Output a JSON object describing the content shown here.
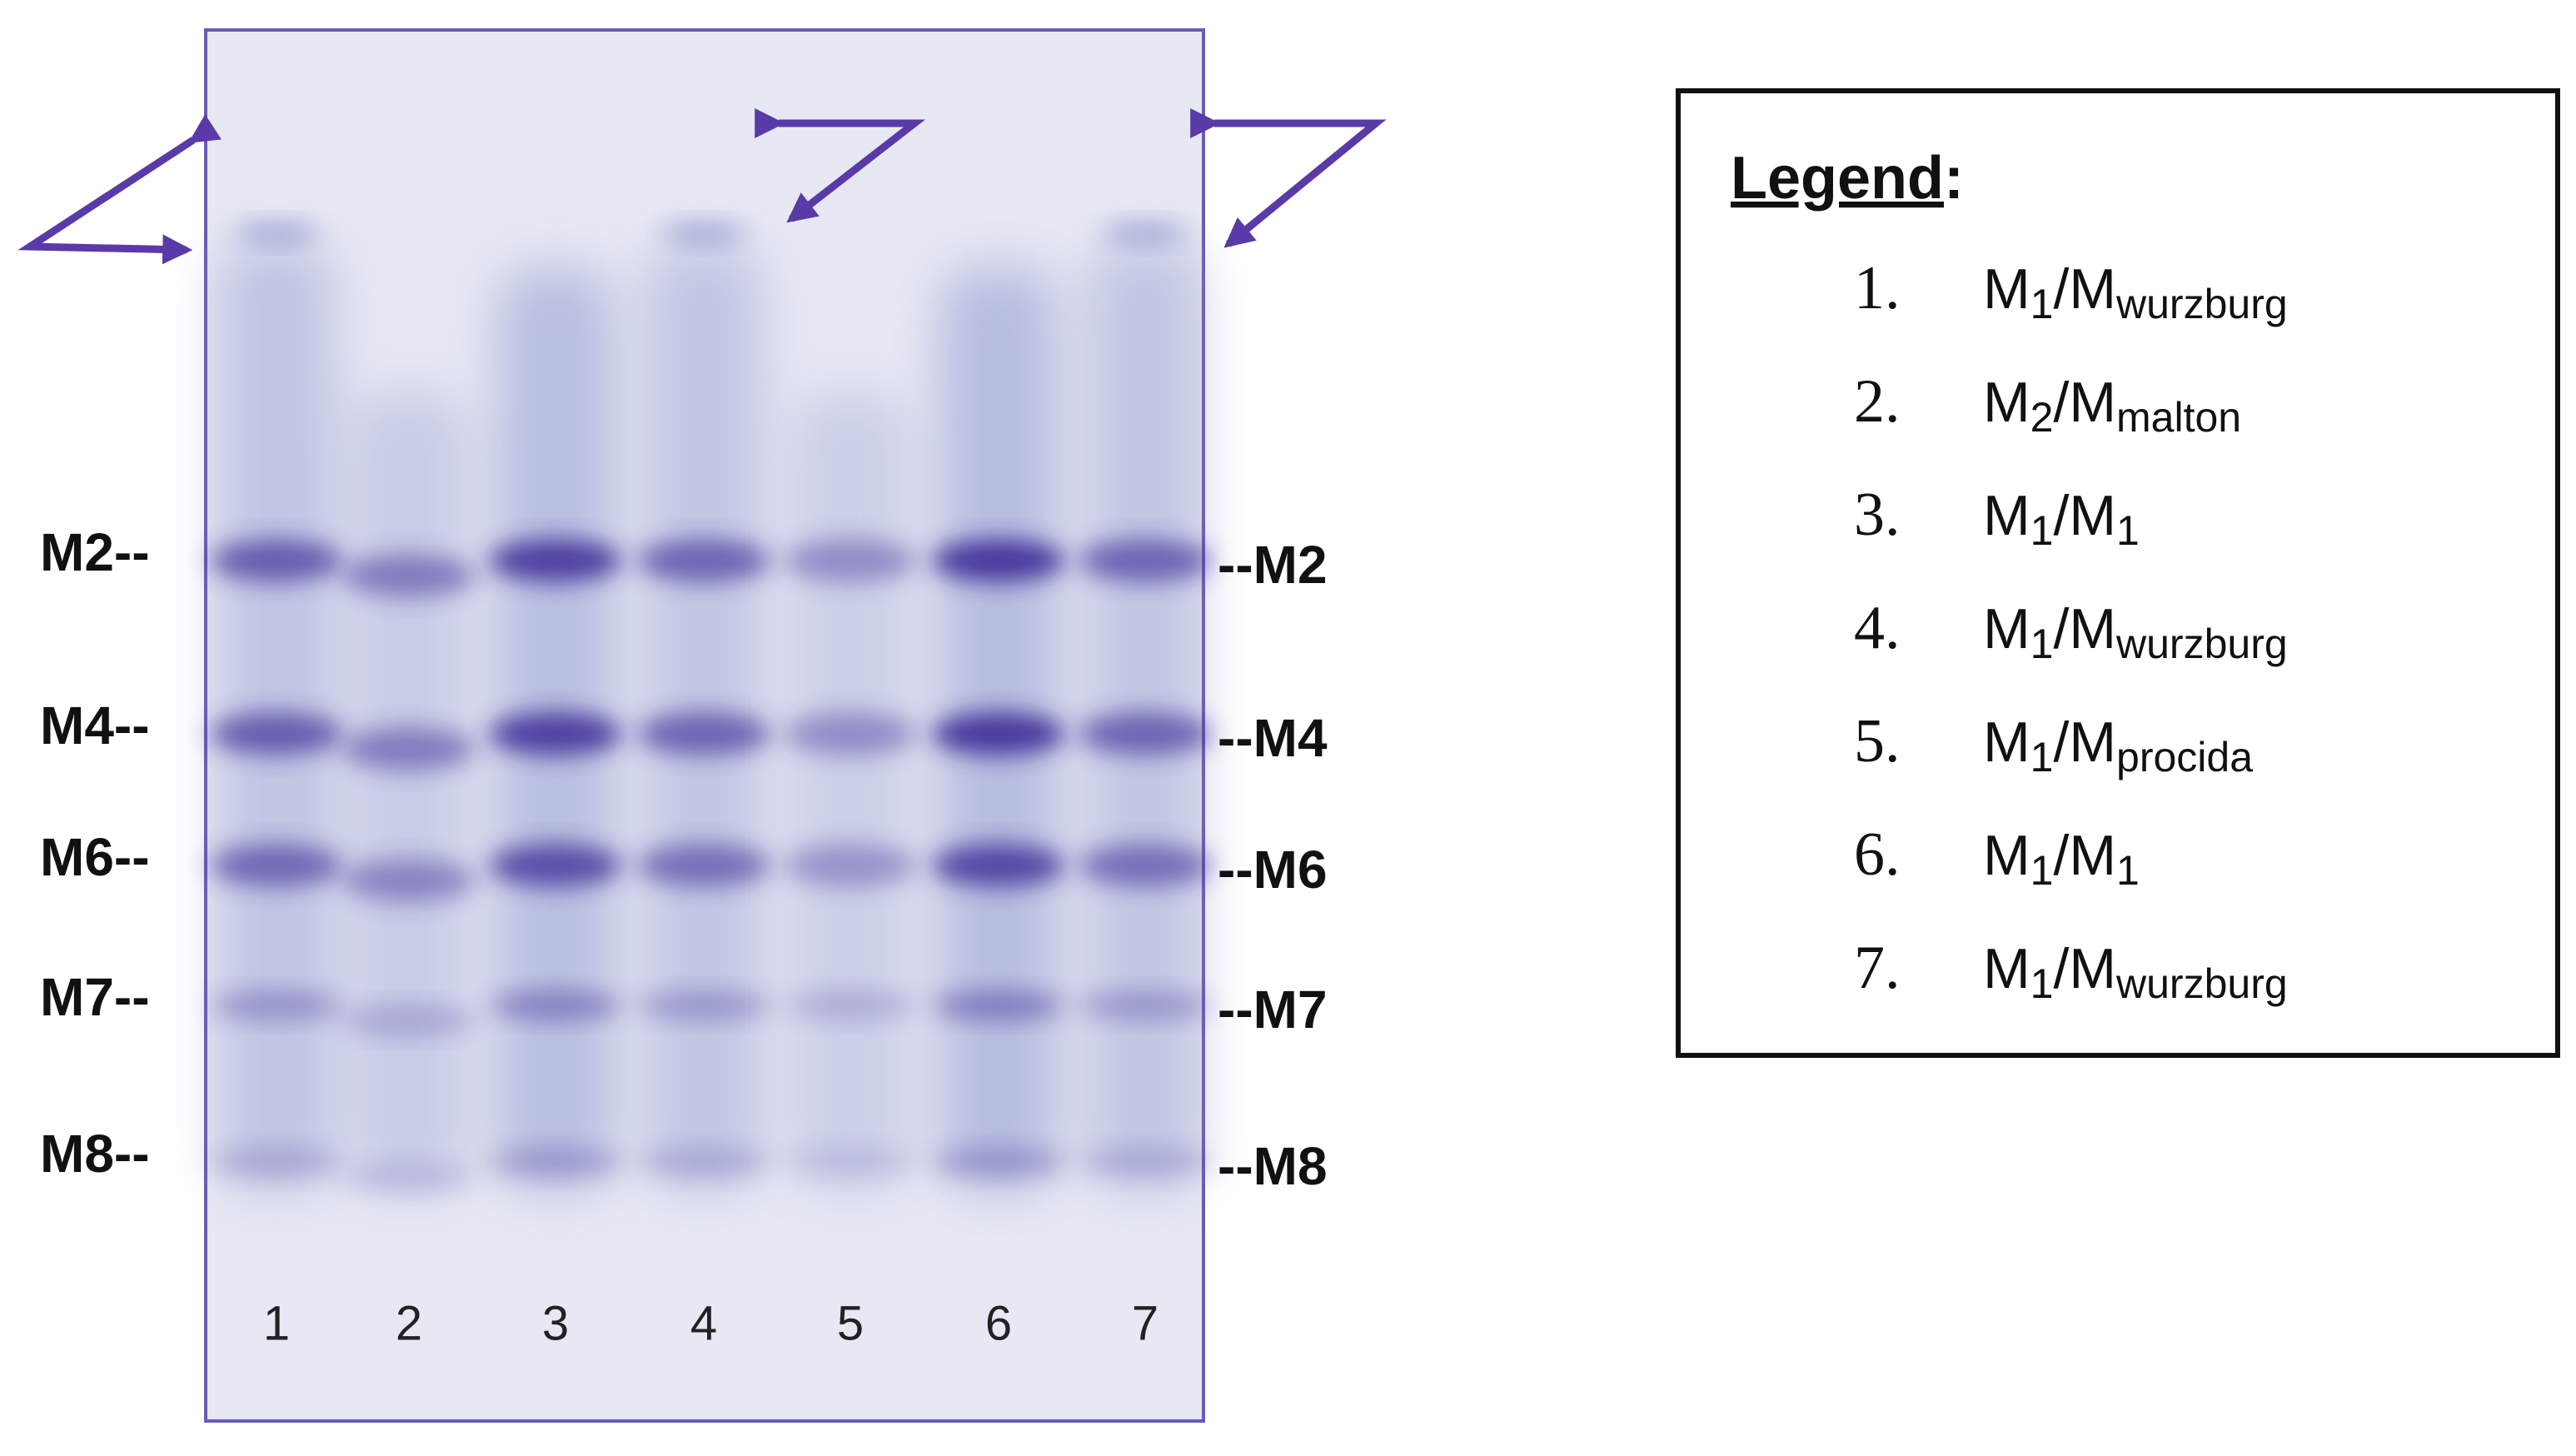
{
  "gel": {
    "markers_left": [
      "M2--",
      "M4--",
      "M6--",
      "M7--",
      "M8--"
    ],
    "markers_right": [
      "--M2",
      "--M4",
      "--M6",
      "--M7",
      "--M8"
    ],
    "lanes": [
      "1",
      "2",
      "3",
      "4",
      "5",
      "6",
      "7"
    ]
  },
  "legend": {
    "title": "Legend",
    "title_punct": ":",
    "items": [
      {
        "number": "1.",
        "parts": [
          {
            "text": "M"
          },
          {
            "sub": "1"
          },
          {
            "text": "/M"
          },
          {
            "sub": "wurzburg"
          }
        ]
      },
      {
        "number": "2.",
        "parts": [
          {
            "text": "M"
          },
          {
            "sub": "2"
          },
          {
            "text": "/M"
          },
          {
            "sub": "malton"
          }
        ]
      },
      {
        "number": "3.",
        "parts": [
          {
            "text": "M"
          },
          {
            "sub": "1"
          },
          {
            "text": "/M"
          },
          {
            "sub": "1"
          }
        ]
      },
      {
        "number": "4.",
        "parts": [
          {
            "text": "M"
          },
          {
            "sub": "1"
          },
          {
            "text": "/M"
          },
          {
            "sub": "wurzburg"
          }
        ]
      },
      {
        "number": "5.",
        "parts": [
          {
            "text": "M"
          },
          {
            "sub": "1"
          },
          {
            "text": "/M"
          },
          {
            "sub": "procida"
          }
        ]
      },
      {
        "number": "6.",
        "parts": [
          {
            "text": "M"
          },
          {
            "sub": "1"
          },
          {
            "text": "/M"
          },
          {
            "sub": "1"
          }
        ]
      },
      {
        "number": "7.",
        "parts": [
          {
            "text": "M"
          },
          {
            "sub": "1"
          },
          {
            "text": "/M"
          },
          {
            "sub": "wurzburg"
          }
        ]
      }
    ]
  }
}
